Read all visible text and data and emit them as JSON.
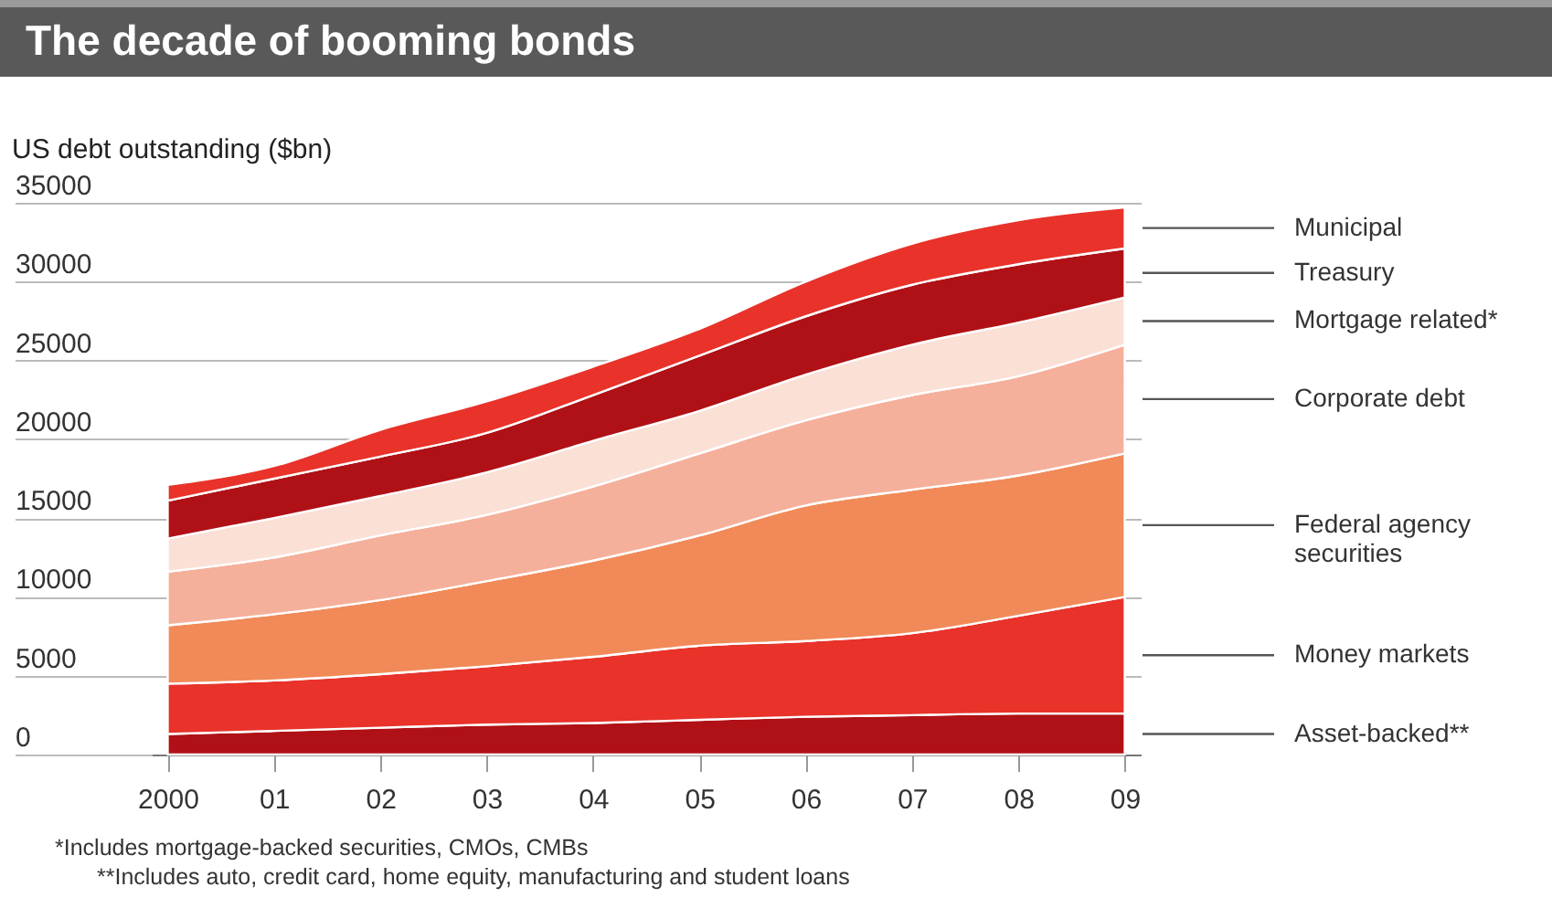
{
  "chart_data": {
    "type": "area",
    "stacked": true,
    "title": "The decade of booming bonds",
    "ylabel": "US debt outstanding ($bn)",
    "categories": [
      "2000",
      "01",
      "02",
      "03",
      "04",
      "05",
      "06",
      "07",
      "08",
      "09"
    ],
    "series": [
      {
        "name": "Asset-backed**",
        "color": "#b01116",
        "values": [
          1300,
          1500,
          1700,
          1900,
          2000,
          2200,
          2400,
          2500,
          2600,
          2600
        ]
      },
      {
        "name": "Money markets",
        "color": "#e8322a",
        "values": [
          3200,
          3200,
          3400,
          3700,
          4200,
          4700,
          4800,
          5200,
          6200,
          7400
        ]
      },
      {
        "name": "Federal agency securities",
        "color": "#f18a58",
        "values": [
          3700,
          4200,
          4700,
          5400,
          6100,
          7000,
          8600,
          9100,
          8900,
          9100
        ]
      },
      {
        "name": "Corporate debt",
        "color": "#f5b09b",
        "values": [
          3400,
          3600,
          4100,
          4200,
          4700,
          5200,
          5400,
          6000,
          6300,
          6900
        ]
      },
      {
        "name": "Mortgage related*",
        "color": "#fbe0d6",
        "values": [
          2100,
          2500,
          2500,
          2700,
          2900,
          2700,
          2900,
          3200,
          3400,
          3000
        ]
      },
      {
        "name": "Treasury",
        "color": "#b01116",
        "values": [
          2400,
          2500,
          2500,
          2500,
          2900,
          3500,
          3700,
          3800,
          3700,
          3100
        ]
      },
      {
        "name": "Municipal",
        "color": "#e8322a",
        "values": [
          1000,
          800,
          1700,
          2000,
          1800,
          1700,
          2200,
          2600,
          2800,
          2600
        ]
      }
    ],
    "ylim": [
      0,
      35000
    ],
    "yticks": [
      0,
      5000,
      10000,
      15000,
      20000,
      25000,
      30000,
      35000
    ],
    "grid": "y",
    "annotations": [
      "*Includes mortgage-backed securities, CMOs, CMBs",
      "**Includes auto, credit card, home equity, manufacturing and student loans"
    ]
  }
}
